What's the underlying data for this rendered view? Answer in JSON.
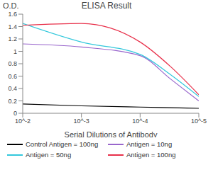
{
  "chart_data": {
    "type": "line",
    "title": "ELISA Result",
    "y_label": "O.D.",
    "x_label": "Serial Dilutions of Antibody",
    "log": "x",
    "grid": false,
    "legend": "bottom",
    "x": [
      0.01,
      0.001,
      0.0001,
      3e-05,
      1e-05
    ],
    "xlim": [
      0.01,
      1e-05
    ],
    "xticks": [
      {
        "value": 0.01,
        "label": "10^-2"
      },
      {
        "value": 0.001,
        "label": "10^-3"
      },
      {
        "value": 0.0001,
        "label": "10^-4"
      },
      {
        "value": 1e-05,
        "label": "10^-5"
      }
    ],
    "ylim": [
      0,
      1.6
    ],
    "yticks": [
      0,
      0.2,
      0.4,
      0.6,
      0.8,
      1,
      1.2,
      1.4,
      1.6
    ],
    "series": [
      {
        "name": "Control Antigen = 100ng",
        "color": "#000000",
        "values": [
          0.15,
          0.12,
          0.1,
          0.09,
          0.08
        ]
      },
      {
        "name": "Antigen = 10ng",
        "color": "#9966cc",
        "values": [
          1.12,
          1.07,
          0.93,
          0.55,
          0.2
        ]
      },
      {
        "name": "Antigen = 50ng",
        "color": "#33c8dc",
        "values": [
          1.45,
          1.15,
          0.95,
          0.62,
          0.27
        ]
      },
      {
        "name": "Antigen = 100ng",
        "color": "#e8304a",
        "values": [
          1.42,
          1.45,
          1.15,
          0.75,
          0.3
        ]
      }
    ]
  }
}
